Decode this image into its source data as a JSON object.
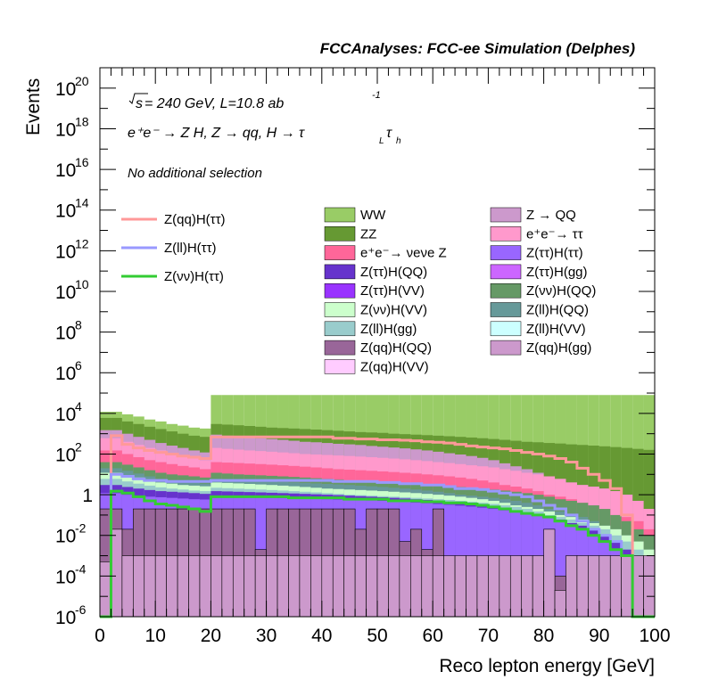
{
  "chart_data": {
    "type": "stacked-histogram",
    "header": "FCCAnalyses: FCC-ee Simulation (Delphes)",
    "xlabel": "Reco lepton energy [GeV]",
    "ylabel": "Events",
    "xlim": [
      0,
      100
    ],
    "ylim": [
      1e-06,
      1e+21
    ],
    "yscale": "log",
    "x_ticks": [
      0,
      10,
      20,
      30,
      40,
      50,
      60,
      70,
      80,
      90,
      100
    ],
    "y_ticks": [
      {
        "value": 1e-06,
        "base": "10",
        "exp": "-6"
      },
      {
        "value": 0.0001,
        "base": "10",
        "exp": "-4"
      },
      {
        "value": 0.01,
        "base": "10",
        "exp": "-2"
      },
      {
        "value": 1,
        "base": "1",
        "exp": ""
      },
      {
        "value": 100,
        "base": "10",
        "exp": "2"
      },
      {
        "value": 10000,
        "base": "10",
        "exp": "4"
      },
      {
        "value": 1000000,
        "base": "10",
        "exp": "6"
      },
      {
        "value": 100000000,
        "base": "10",
        "exp": "8"
      },
      {
        "value": 10000000000,
        "base": "10",
        "exp": "10"
      },
      {
        "value": 1000000000000,
        "base": "10",
        "exp": "12"
      },
      {
        "value": 100000000000000,
        "base": "10",
        "exp": "14"
      },
      {
        "value": 10000000000000000,
        "base": "10",
        "exp": "16"
      },
      {
        "value": 1000000000000000000,
        "base": "10",
        "exp": "18"
      },
      {
        "value": 100000000000000000000,
        "base": "10",
        "exp": "20"
      }
    ],
    "annotations": {
      "sqrt": "s",
      "energy_lumi": " = 240 GeV, L=10.8 ab",
      "lumi_exp": "-1",
      "process": "e⁺e⁻ → Z H, Z → qq, H → τ",
      "process_sub_L": "L",
      "process_tau": "τ",
      "process_sub_h": "h",
      "selection": "No additional selection"
    },
    "bin_edges": [
      0,
      2,
      4,
      6,
      8,
      10,
      12,
      14,
      16,
      18,
      20,
      22,
      24,
      26,
      28,
      30,
      32,
      34,
      36,
      38,
      40,
      42,
      44,
      46,
      48,
      50,
      52,
      54,
      56,
      58,
      60,
      62,
      64,
      66,
      68,
      70,
      72,
      74,
      76,
      78,
      80,
      82,
      84,
      86,
      88,
      90,
      92,
      94,
      96,
      98,
      100
    ],
    "stack_totals": [
      {
        "name": "WW",
        "color": "#99cc66",
        "values": [
          12000,
          12000,
          9000,
          7000,
          5000,
          4000,
          3000,
          2500,
          2000,
          1800,
          80000,
          80000,
          80000,
          80000,
          80000,
          80000,
          80000,
          80000,
          80000,
          80000,
          80000,
          80000,
          80000,
          80000,
          80000,
          80000,
          80000,
          80000,
          80000,
          80000,
          80000,
          80000,
          80000,
          80000,
          80000,
          80000,
          80000,
          80000,
          80000,
          80000,
          80000,
          80000,
          80000,
          80000,
          80000,
          80000,
          80000,
          80000,
          80000,
          80000
        ]
      },
      {
        "name": "ZZ",
        "color": "#669933",
        "values": [
          6000,
          6000,
          4000,
          3000,
          2200,
          1700,
          1300,
          1000,
          800,
          700,
          3000,
          2800,
          2600,
          2400,
          2200,
          2000,
          1900,
          1800,
          1700,
          1600,
          1500,
          1400,
          1300,
          1200,
          1150,
          1100,
          1000,
          950,
          900,
          850,
          800,
          750,
          700,
          650,
          600,
          550,
          500,
          450,
          400,
          380,
          350,
          330,
          300,
          280,
          260,
          240,
          220,
          200,
          180,
          160
        ]
      },
      {
        "name": "Z → QQ",
        "color": "#cc99cc",
        "values": [
          1500,
          1500,
          1000,
          700,
          500,
          350,
          260,
          200,
          150,
          120,
          900,
          800,
          700,
          650,
          600,
          550,
          500,
          450,
          400,
          380,
          350,
          320,
          300,
          280,
          250,
          230,
          210,
          190,
          170,
          150,
          130,
          110,
          95,
          80,
          65,
          50,
          35,
          25,
          18,
          12,
          8,
          6,
          4,
          3,
          2.5,
          2,
          1.5,
          1,
          0.5,
          0.2
        ]
      },
      {
        "name": "e⁺e⁻→ ττ",
        "color": "#ff99cc",
        "values": [
          600,
          600,
          400,
          280,
          200,
          150,
          110,
          85,
          65,
          50,
          200,
          180,
          165,
          150,
          140,
          130,
          120,
          110,
          100,
          95,
          90,
          85,
          80,
          75,
          70,
          65,
          60,
          55,
          50,
          45,
          40,
          36,
          32,
          28,
          25,
          22,
          18,
          15,
          12,
          10,
          8,
          6,
          4,
          3,
          2.5,
          2,
          1.5,
          1,
          0.5,
          0.2
        ]
      },
      {
        "name": "e⁺e⁻→ νeνe Z",
        "color": "#ff6699",
        "values": [
          150,
          150,
          100,
          70,
          50,
          40,
          32,
          26,
          22,
          18,
          40,
          38,
          36,
          34,
          32,
          30,
          28,
          26,
          24,
          22,
          20,
          18,
          17,
          16,
          15,
          14,
          13,
          12,
          11,
          10,
          9,
          8,
          7,
          6,
          5,
          4,
          3,
          2.5,
          2,
          1.5,
          1,
          0.8,
          0.6,
          0.4,
          0.3,
          0.2,
          0.1,
          0.08,
          0.05,
          0.02
        ]
      },
      {
        "name": "Z(νν)H(QQ)",
        "color": "#669966",
        "values": [
          40,
          40,
          30,
          22,
          16,
          12,
          10,
          9,
          8,
          7,
          12,
          11,
          10,
          9.5,
          9,
          8.5,
          8,
          7.5,
          7,
          6.5,
          6,
          5.5,
          5,
          4.5,
          4,
          3.8,
          3.6,
          3.4,
          3.2,
          3,
          2.8,
          2.6,
          2.4,
          2.2,
          2,
          1.8,
          1.6,
          1.4,
          1.2,
          1,
          0.8,
          0.6,
          0.5,
          0.4,
          0.3,
          0.2,
          0.1,
          0.05,
          0.02,
          0.01
        ]
      },
      {
        "name": "Z(ll)H(QQ)",
        "color": "#669999",
        "values": [
          20,
          20,
          15,
          11,
          8,
          6,
          5,
          4.5,
          4,
          3.5,
          6,
          5.5,
          5,
          4.8,
          4.6,
          4.4,
          4.2,
          4,
          3.8,
          3.6,
          3.4,
          3.2,
          3,
          2.8,
          2.6,
          2.4,
          2.2,
          2,
          1.8,
          1.6,
          1.4,
          1.2,
          1,
          0.9,
          0.8,
          0.7,
          0.6,
          0.5,
          0.4,
          0.3,
          0.2,
          0.15,
          0.1,
          0.08,
          0.05,
          0.03,
          0.02,
          0.01,
          0.005,
          0.002
        ]
      },
      {
        "name": "Z(νν)H(VV)",
        "color": "#ccffcc",
        "values": [
          12,
          12,
          9,
          7,
          5,
          4,
          3.5,
          3,
          2.8,
          2.6,
          4,
          3.8,
          3.6,
          3.4,
          3.2,
          3,
          2.8,
          2.6,
          2.4,
          2.2,
          2,
          1.9,
          1.8,
          1.7,
          1.6,
          1.5,
          1.4,
          1.3,
          1.2,
          1.1,
          1,
          0.9,
          0.8,
          0.7,
          0.6,
          0.5,
          0.4,
          0.3,
          0.25,
          0.2,
          0.15,
          0.1,
          0.08,
          0.06,
          0.04,
          0.03,
          0.02,
          0.01,
          0.005,
          0.002
        ]
      },
      {
        "name": "Z(ll)H(gg)",
        "color": "#99cccc",
        "values": [
          6,
          6,
          4.5,
          3.5,
          2.8,
          2.3,
          2,
          1.8,
          1.6,
          1.5,
          2.2,
          2.1,
          2,
          1.9,
          1.8,
          1.7,
          1.6,
          1.5,
          1.4,
          1.3,
          1.2,
          1.1,
          1,
          0.95,
          0.9,
          0.85,
          0.8,
          0.75,
          0.7,
          0.65,
          0.6,
          0.55,
          0.5,
          0.45,
          0.4,
          0.35,
          0.3,
          0.25,
          0.2,
          0.15,
          0.1,
          0.08,
          0.06,
          0.04,
          0.03,
          0.02,
          0.01,
          0.005,
          0.002,
          0.001
        ]
      },
      {
        "name": "Z(ττ)H(QQ)",
        "color": "#6633cc",
        "values": [
          3,
          3,
          2.4,
          2,
          1.7,
          1.5,
          1.4,
          1.3,
          1.2,
          1.1,
          1.5,
          1.45,
          1.4,
          1.35,
          1.3,
          1.25,
          1.2,
          1.15,
          1.1,
          1.05,
          1,
          0.95,
          0.9,
          0.85,
          0.8,
          0.75,
          0.7,
          0.65,
          0.6,
          0.55,
          0.5,
          0.45,
          0.4,
          0.35,
          0.3,
          0.25,
          0.2,
          0.16,
          0.13,
          0.1,
          0.08,
          0.06,
          0.04,
          0.03,
          0.02,
          0.01,
          0.005,
          0.002,
          0.001,
          0.0005
        ]
      },
      {
        "name": "Z(ττ)H(ττ)",
        "color": "#9966ff",
        "values": [
          1.2,
          1.2,
          1,
          0.9,
          0.8,
          0.75,
          0.7,
          0.65,
          0.6,
          0.58,
          0.8,
          0.78,
          0.76,
          0.74,
          0.72,
          0.7,
          0.68,
          0.66,
          0.64,
          0.62,
          0.6,
          0.58,
          0.56,
          0.54,
          0.52,
          0.5,
          0.47,
          0.44,
          0.41,
          0.38,
          0.35,
          0.32,
          0.29,
          0.26,
          0.23,
          0.2,
          0.17,
          0.14,
          0.11,
          0.09,
          0.07,
          0.05,
          0.035,
          0.02,
          0.01,
          0.005,
          0.002,
          0.001,
          0.0005,
          0.0002
        ]
      }
    ],
    "sparse_components": [
      {
        "name": "Z(qq)H(QQ)",
        "color": "#996699",
        "values": [
          0.2,
          0.2,
          0.02,
          0.2,
          0.2,
          0.2,
          0.2,
          0.2,
          0.2,
          0.2,
          0.2,
          0.2,
          0.2,
          0.2,
          0.002,
          0.2,
          0.2,
          0.2,
          0.2,
          0.2,
          0.2,
          0.2,
          0.2,
          0.02,
          0.2,
          0.2,
          0.2,
          0.005,
          0.02,
          0.002,
          0.2,
          0.0001,
          0.0001,
          0.0001,
          0.0001,
          0.0001,
          0.0001,
          0.0001,
          0.0001,
          0.0001,
          0.0001,
          0.0001,
          0.0001,
          0.0001,
          0.0001,
          0.0001,
          0.0001,
          0.0001,
          0.0001,
          0.0001
        ]
      },
      {
        "name": "Z(qq)H(gg)",
        "color": "#cc99cc",
        "values": [
          0.0005,
          0.02,
          0.001,
          0.001,
          0.001,
          0.001,
          0.001,
          0.001,
          0.001,
          0.001,
          0.001,
          0.001,
          0.001,
          0.001,
          0.001,
          0.001,
          0.001,
          0.001,
          0.001,
          0.001,
          0.001,
          0.001,
          0.001,
          0.001,
          0.001,
          0.001,
          0.001,
          0.001,
          0.001,
          0.001,
          0.001,
          0.001,
          0.001,
          0.001,
          0.001,
          0.001,
          0.001,
          0.001,
          0.001,
          0.001,
          0.02,
          2e-05,
          0.001,
          0.001,
          0.001,
          0.001,
          0.001,
          0.001,
          0.001,
          0.001
        ]
      }
    ],
    "signal_lines": [
      {
        "name": "Z(qq)H(ττ)",
        "color": "#ff9999",
        "values": [
          1e-06,
          800,
          300,
          200,
          150,
          120,
          100,
          80,
          70,
          60,
          700,
          700,
          700,
          700,
          700,
          700,
          700,
          700,
          700,
          700,
          700,
          600,
          600,
          550,
          550,
          500,
          500,
          480,
          450,
          400,
          380,
          350,
          300,
          250,
          220,
          200,
          180,
          150,
          120,
          100,
          80,
          60,
          40,
          20,
          10,
          5,
          2,
          0.1,
          1e-06,
          1e-06
        ]
      },
      {
        "name": "Z(ll)H(ττ)",
        "color": "#9999ff",
        "values": [
          1e-06,
          10,
          8,
          6,
          5,
          5,
          4.5,
          4.5,
          4.5,
          4.5,
          5,
          5,
          5,
          5,
          5,
          5,
          5,
          5,
          5,
          5,
          5,
          4.5,
          4.5,
          4.5,
          4.5,
          4,
          4,
          3.5,
          3.5,
          3,
          3,
          2.5,
          2,
          2,
          1.8,
          1.5,
          1.2,
          1,
          0.8,
          0.5,
          0.3,
          0.2,
          0.1,
          0.05,
          0.02,
          0.01,
          0.005,
          0.001,
          1e-06,
          1e-06
        ]
      },
      {
        "name": "Z(νν)H(ττ)",
        "color": "#33cc33",
        "values": [
          1e-06,
          1.5,
          1.2,
          0.8,
          0.5,
          0.35,
          0.3,
          0.25,
          0.2,
          0.15,
          0.8,
          0.8,
          0.8,
          0.8,
          0.8,
          0.8,
          0.8,
          0.7,
          0.7,
          0.7,
          0.7,
          0.7,
          0.6,
          0.6,
          0.6,
          0.6,
          0.5,
          0.5,
          0.5,
          0.45,
          0.45,
          0.4,
          0.4,
          0.35,
          0.3,
          0.25,
          0.2,
          0.15,
          0.12,
          0.1,
          0.08,
          0.05,
          0.03,
          0.02,
          0.01,
          0.005,
          0.002,
          0.001,
          1e-06,
          1e-06
        ]
      }
    ],
    "legend_left": [
      {
        "name": "Z(qq)H(ττ)",
        "color": "#ff9999"
      },
      {
        "name": "Z(ll)H(ττ)",
        "color": "#9999ff"
      },
      {
        "name": "Z(νν)H(ττ)",
        "color": "#33cc33"
      }
    ],
    "legend_mid": [
      {
        "name": "WW",
        "color": "#99cc66"
      },
      {
        "name": "ZZ",
        "color": "#669933"
      },
      {
        "name": "e⁺e⁻→ νeνe Z",
        "color": "#ff6699"
      },
      {
        "name": "Z(ττ)H(QQ)",
        "color": "#6633cc"
      },
      {
        "name": "Z(ττ)H(VV)",
        "color": "#9933ff"
      },
      {
        "name": "Z(νν)H(VV)",
        "color": "#ccffcc"
      },
      {
        "name": "Z(ll)H(gg)",
        "color": "#99cccc"
      },
      {
        "name": "Z(qq)H(QQ)",
        "color": "#996699"
      },
      {
        "name": "Z(qq)H(VV)",
        "color": "#ffccff"
      }
    ],
    "legend_right": [
      {
        "name": "Z → QQ",
        "color": "#cc99cc"
      },
      {
        "name": "e⁺e⁻→ ττ",
        "color": "#ff99cc"
      },
      {
        "name": "Z(ττ)H(ττ)",
        "color": "#9966ff"
      },
      {
        "name": "Z(ττ)H(gg)",
        "color": "#cc66ff"
      },
      {
        "name": "Z(νν)H(QQ)",
        "color": "#669966"
      },
      {
        "name": "Z(ll)H(QQ)",
        "color": "#669999"
      },
      {
        "name": "Z(ll)H(VV)",
        "color": "#ccffff"
      },
      {
        "name": "Z(qq)H(gg)",
        "color": "#cc99cc"
      }
    ]
  }
}
